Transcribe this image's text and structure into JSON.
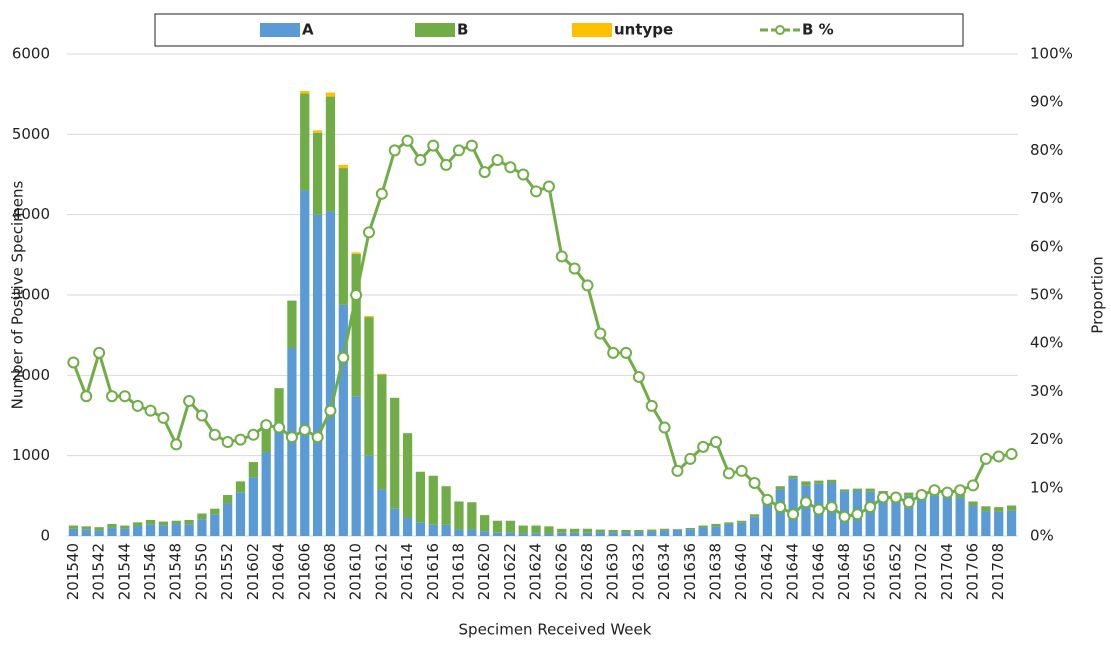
{
  "chart_data": {
    "type": "bar",
    "xlabel": "Specimen Received Week",
    "ylabel": "Number of Positive Specimens",
    "y2label": "Proportion",
    "legend": "top",
    "grid": true,
    "categories": [
      "201540",
      null,
      "201542",
      null,
      "201544",
      null,
      "201546",
      null,
      "201548",
      null,
      "201550",
      null,
      "201552",
      null,
      "201602",
      null,
      "201604",
      null,
      "201606",
      null,
      "201608",
      null,
      "201610",
      null,
      "201612",
      null,
      "201614",
      null,
      "201616",
      null,
      "201618",
      null,
      "201620",
      null,
      "201622",
      null,
      "201624",
      null,
      "201626",
      null,
      "201628",
      null,
      "201630",
      null,
      "201632",
      null,
      "201634",
      null,
      "201636",
      null,
      "201638",
      null,
      "201640",
      null,
      "201642",
      null,
      "201644",
      null,
      "201646",
      null,
      "201648",
      null,
      "201650",
      null,
      "201652",
      null,
      "201702",
      null,
      "201704",
      null,
      "201706",
      null,
      "201708",
      null
    ],
    "series": [
      {
        "name": "A",
        "color": "#5b9bd5",
        "values": [
          90,
          85,
          70,
          105,
          95,
          125,
          145,
          135,
          155,
          145,
          210,
          270,
          410,
          545,
          730,
          1040,
          1420,
          2340,
          4300,
          4000,
          4040,
          2880,
          1740,
          1000,
          580,
          340,
          230,
          170,
          140,
          140,
          80,
          80,
          60,
          40,
          45,
          30,
          35,
          30,
          40,
          40,
          40,
          45,
          45,
          45,
          50,
          55,
          70,
          75,
          85,
          105,
          120,
          150,
          165,
          240,
          390,
          580,
          720,
          630,
          650,
          660,
          555,
          560,
          550,
          510,
          480,
          500,
          500,
          500,
          490,
          480,
          380,
          310,
          300,
          315
        ]
      },
      {
        "name": "B",
        "color": "#70ad47",
        "values": [
          40,
          35,
          40,
          45,
          35,
          45,
          55,
          45,
          35,
          55,
          70,
          70,
          100,
          135,
          190,
          310,
          420,
          590,
          1210,
          1020,
          1430,
          1700,
          1770,
          1725,
          1430,
          1380,
          1050,
          630,
          610,
          480,
          350,
          340,
          200,
          150,
          145,
          100,
          95,
          90,
          50,
          50,
          50,
          35,
          30,
          30,
          25,
          25,
          20,
          10,
          15,
          25,
          30,
          20,
          25,
          30,
          30,
          40,
          30,
          50,
          40,
          40,
          25,
          30,
          40,
          50,
          40,
          40,
          50,
          60,
          50,
          50,
          50,
          60,
          60,
          65
        ]
      },
      {
        "name": "untype",
        "color": "#ffc000",
        "values": [
          0,
          0,
          0,
          0,
          0,
          0,
          0,
          0,
          0,
          0,
          0,
          0,
          0,
          0,
          0,
          0,
          0,
          0,
          30,
          30,
          50,
          40,
          20,
          15,
          10,
          0,
          0,
          0,
          0,
          0,
          0,
          0,
          0,
          0,
          0,
          0,
          0,
          0,
          0,
          0,
          0,
          0,
          0,
          0,
          0,
          0,
          0,
          0,
          0,
          0,
          0,
          0,
          0,
          0,
          0,
          0,
          0,
          0,
          0,
          0,
          0,
          0,
          0,
          0,
          0,
          0,
          0,
          0,
          0,
          0,
          0,
          0,
          0,
          0
        ]
      },
      {
        "name": "B %",
        "color": "#70ad47",
        "type": "line",
        "axis": "y2",
        "values": [
          36,
          29,
          38,
          29,
          29,
          27,
          26,
          24.5,
          19,
          28,
          25,
          21,
          19.5,
          20,
          21,
          23,
          22.5,
          20.5,
          22,
          20.5,
          26,
          37,
          50,
          63,
          71,
          80,
          82,
          78,
          81,
          77,
          80,
          81,
          75.5,
          78,
          76.5,
          75,
          71.5,
          72.5,
          58,
          55.5,
          52,
          42,
          38,
          38,
          33,
          27,
          22.5,
          13.5,
          16,
          18.5,
          19.5,
          13,
          13.5,
          11,
          7.5,
          6,
          4.5,
          7,
          5.5,
          6,
          4,
          4.5,
          6,
          8,
          8,
          7,
          8.5,
          9.5,
          9,
          9.5,
          10.5,
          16,
          16.5,
          17
        ]
      }
    ],
    "ylim": [
      0,
      6000
    ],
    "yticks": [
      0,
      1000,
      2000,
      3000,
      4000,
      5000,
      6000
    ],
    "y2lim": [
      0,
      100
    ],
    "y2ticks": [
      {
        "value": 0,
        "label": "0%"
      },
      {
        "value": 10,
        "label": "10%"
      },
      {
        "value": 20,
        "label": "20%"
      },
      {
        "value": 30,
        "label": "30%"
      },
      {
        "value": 40,
        "label": "40%"
      },
      {
        "value": 50,
        "label": "50%"
      },
      {
        "value": 60,
        "label": "60%"
      },
      {
        "value": 70,
        "label": "70%"
      },
      {
        "value": 80,
        "label": "80%"
      },
      {
        "value": 90,
        "label": "90%"
      },
      {
        "value": 100,
        "label": "100%"
      }
    ]
  }
}
